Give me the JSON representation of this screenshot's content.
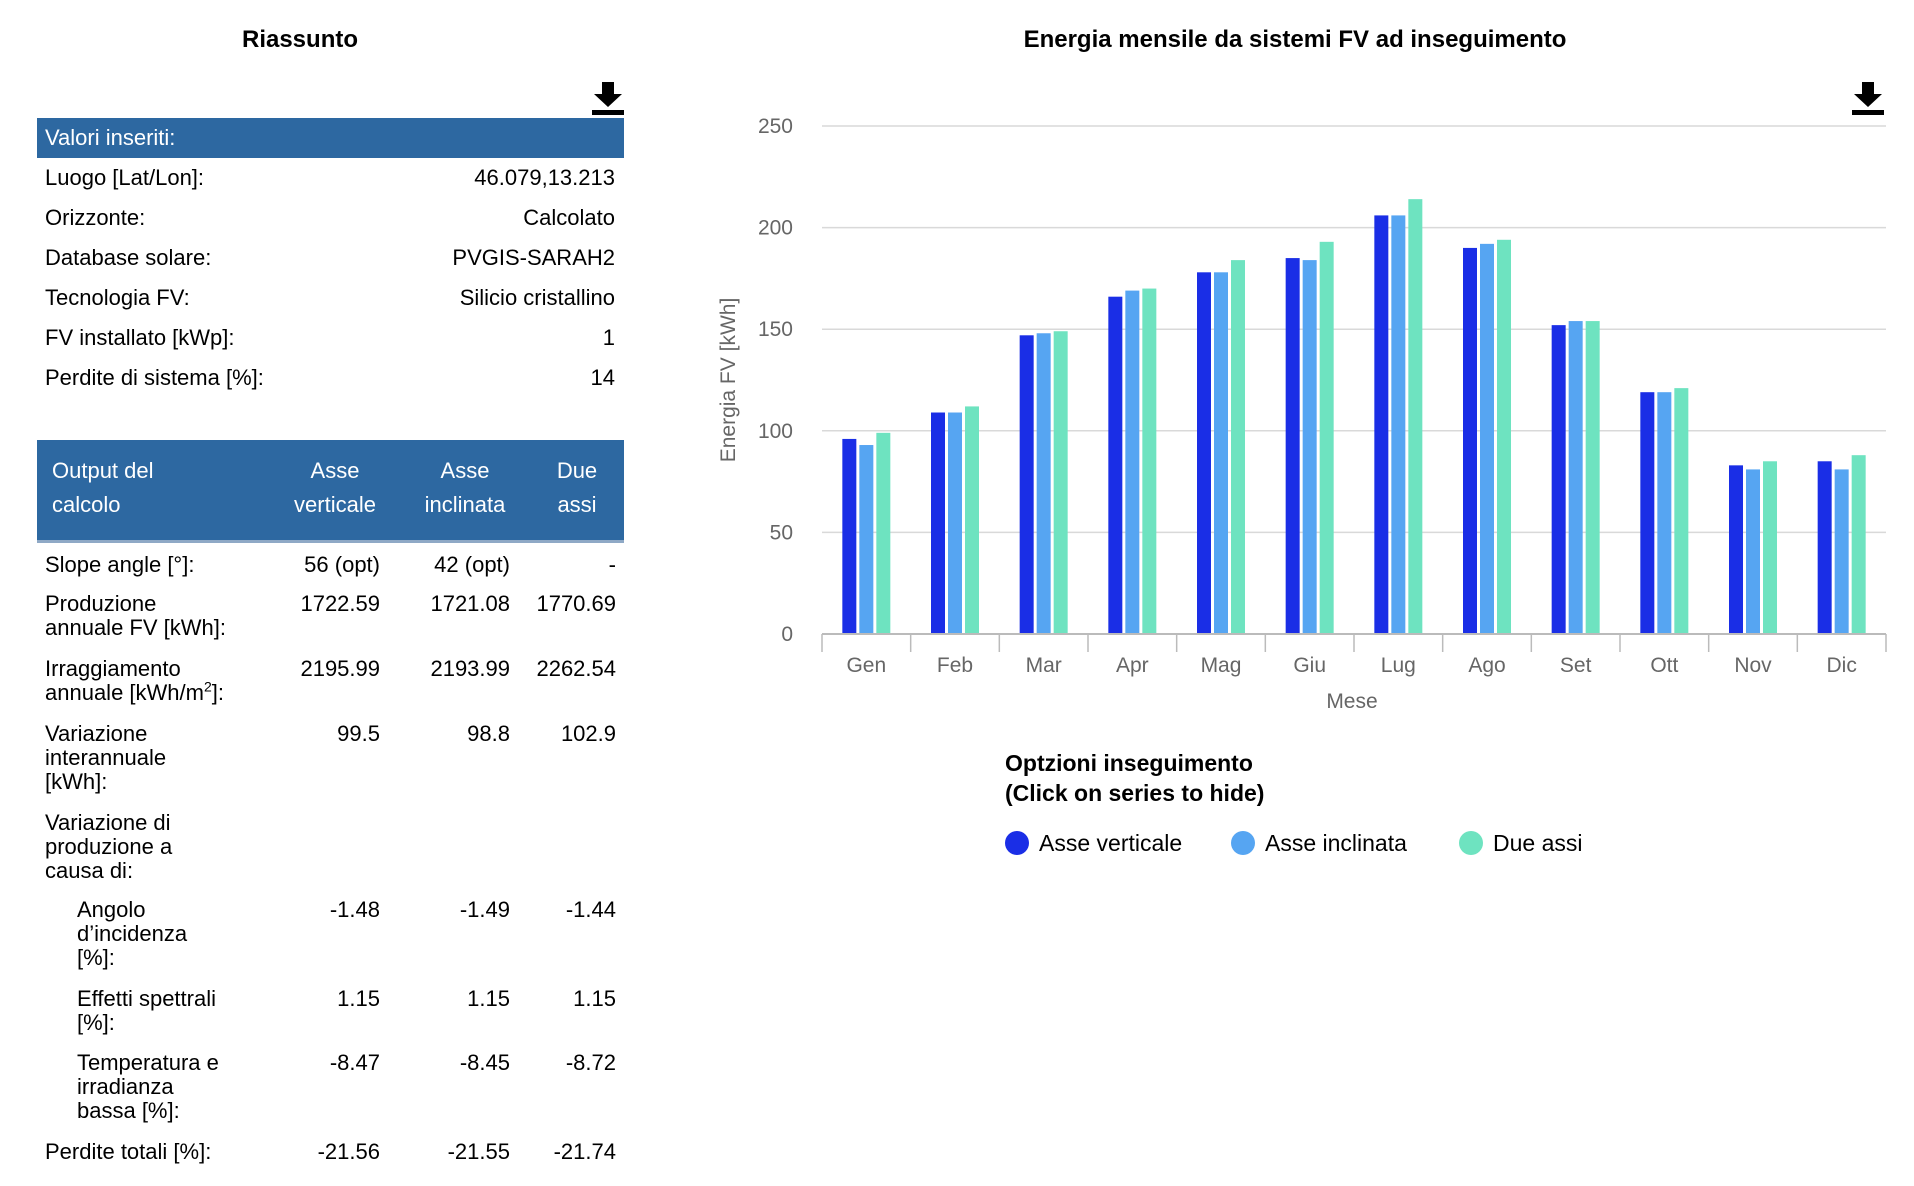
{
  "summary": {
    "title": "Riassunto",
    "inputs_header": "Valori inseriti:",
    "inputs": [
      {
        "label": "Luogo [Lat/Lon]:",
        "value": "46.079,13.213"
      },
      {
        "label": "Orizzonte:",
        "value": "Calcolato"
      },
      {
        "label": "Database solare:",
        "value": "PVGIS-SARAH2"
      },
      {
        "label": "Tecnologia FV:",
        "value": "Silicio cristallino"
      },
      {
        "label": "FV installato [kWp]:",
        "value": "1"
      },
      {
        "label": "Perdite di sistema [%]:",
        "value": "14"
      }
    ],
    "output_header": {
      "col0_line1": "Output del",
      "col0_line2": "calcolo",
      "col1_line1": "Asse",
      "col1_line2": "verticale",
      "col2_line1": "Asse",
      "col2_line2": "inclinata",
      "col3_line1": "Due",
      "col3_line2": "assi"
    },
    "rows": {
      "slope": {
        "label": "Slope angle [°]:",
        "v1": "56 (opt)",
        "v2": "42 (opt)",
        "v3": "-"
      },
      "production": {
        "label_l1": "Produzione",
        "label_l2": "annuale FV [kWh]:",
        "v1": "1722.59",
        "v2": "1721.08",
        "v3": "1770.69"
      },
      "irradiation": {
        "label_l1": "Irraggiamento",
        "label_l2": "annuale [kWh/m",
        "label_sup": "2",
        "label_end": "]:",
        "v1": "2195.99",
        "v2": "2193.99",
        "v3": "2262.54"
      },
      "variation": {
        "label_l1": "Variazione",
        "label_l2": "interannuale",
        "label_l3": "[kWh]:",
        "v1": "99.5",
        "v2": "98.8",
        "v3": "102.9"
      },
      "variation_cause": {
        "label_l1": "Variazione di",
        "label_l2": "produzione a",
        "label_l3": "causa di:"
      },
      "angle": {
        "label_l1": "Angolo",
        "label_l2": "d’incidenza",
        "label_l3": "[%]:",
        "v1": "-1.48",
        "v2": "-1.49",
        "v3": "-1.44"
      },
      "spectral": {
        "label_l1": "Effetti spettrali",
        "label_l2": "[%]:",
        "v1": "1.15",
        "v2": "1.15",
        "v3": "1.15"
      },
      "temperature": {
        "label_l1": "Temperatura e",
        "label_l2": "irradianza",
        "label_l3": "bassa [%]:",
        "v1": "-8.47",
        "v2": "-8.45",
        "v3": "-8.72"
      },
      "total": {
        "label": "Perdite totali [%]:",
        "v1": "-21.56",
        "v2": "-21.55",
        "v3": "-21.74"
      }
    }
  },
  "icons": {
    "download": "download-icon"
  },
  "colors": {
    "header_band": "#2d68a1",
    "series1": "#1a2ee6",
    "series2": "#56a5f2",
    "series3": "#6ee3c0"
  },
  "chart_data": {
    "type": "bar",
    "title": "Energia mensile da sistemi FV ad inseguimento",
    "xlabel": "Mese",
    "ylabel": "Energia FV [kWh]",
    "ylim": [
      0,
      250
    ],
    "yticks": [
      "0",
      "50",
      "100",
      "150",
      "200",
      "250"
    ],
    "grid": true,
    "categories": [
      "Gen",
      "Feb",
      "Mar",
      "Apr",
      "Mag",
      "Giu",
      "Lug",
      "Ago",
      "Set",
      "Ott",
      "Nov",
      "Dic"
    ],
    "series": [
      {
        "name": "Asse verticale",
        "color": "#1a2ee6",
        "values": [
          96,
          109,
          147,
          166,
          178,
          185,
          206,
          190,
          152,
          119,
          83,
          85
        ]
      },
      {
        "name": "Asse inclinata",
        "color": "#56a5f2",
        "values": [
          93,
          109,
          148,
          169,
          178,
          184,
          206,
          192,
          154,
          119,
          81,
          81
        ]
      },
      {
        "name": "Due assi",
        "color": "#6ee3c0",
        "values": [
          99,
          112,
          149,
          170,
          184,
          193,
          214,
          194,
          154,
          121,
          85,
          88
        ]
      }
    ],
    "legend_title_l1": "Optzioni inseguimento",
    "legend_title_l2": "(Click on series to hide)",
    "legend_position": "bottom-center"
  }
}
